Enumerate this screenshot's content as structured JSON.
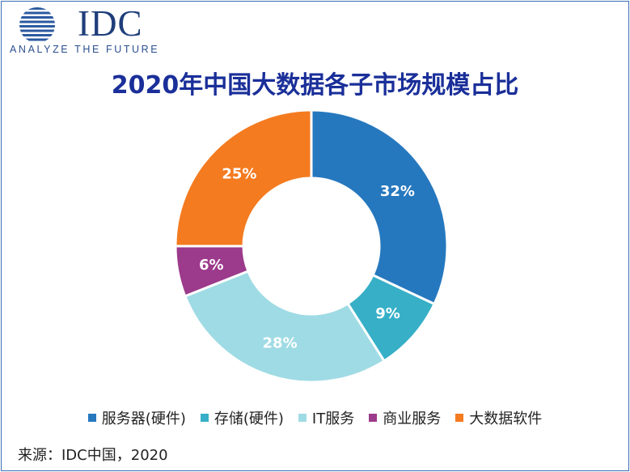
{
  "logo": {
    "brand": "IDC",
    "tagline": "ANALYZE THE FUTURE"
  },
  "chart_data": {
    "type": "pie",
    "subtype": "donut",
    "title": "2020年中国大数据各子市场规模占比",
    "categories": [
      "服务器(硬件)",
      "存储(硬件)",
      "IT服务",
      "商业服务",
      "大数据软件"
    ],
    "values": [
      32,
      9,
      28,
      6,
      25
    ],
    "labels": [
      "32%",
      "9%",
      "28%",
      "6%",
      "25%"
    ],
    "colors": [
      "#2678be",
      "#36afc7",
      "#9fdbe4",
      "#9c3a8c",
      "#f47b20"
    ],
    "label_colors": [
      "#ffffff",
      "#ffffff",
      "#ffffff",
      "#ffffff",
      "#ffffff"
    ],
    "legend_position": "bottom"
  },
  "source": "来源：IDC中国，2020"
}
